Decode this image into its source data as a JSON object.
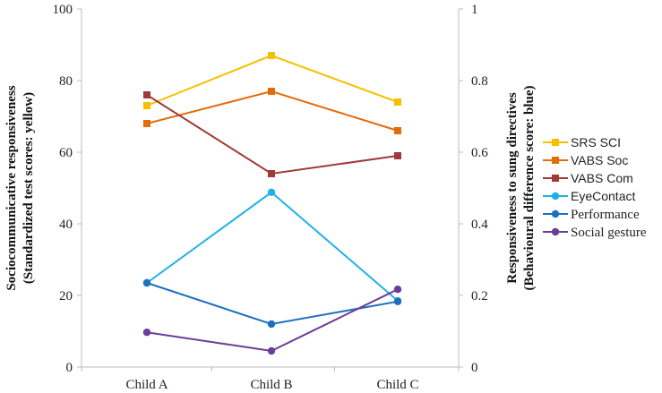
{
  "chart_data": {
    "type": "line",
    "categories": [
      "Child A",
      "Child B",
      "Child C"
    ],
    "left_axis": {
      "title_line1": "Sociocommunicative responsiveness",
      "title_line2": "(Standardized test scores: yellow)",
      "ylim": [
        0,
        100
      ],
      "ticks": [
        "0",
        "20",
        "40",
        "60",
        "80",
        "100"
      ]
    },
    "right_axis": {
      "title_line1": "Responsiveness to sung directives",
      "title_line2": "(Behavioural difference score: blue)",
      "ylim": [
        0,
        1
      ],
      "ticks": [
        "0",
        "0.2",
        "0.4",
        "0.6",
        "0.8",
        "1"
      ]
    },
    "grid": false,
    "legend_position": "right",
    "series": [
      {
        "name": "SRS SCI",
        "axis": "left",
        "marker": "square",
        "color": "#f5c000",
        "values": [
          73,
          87,
          74
        ]
      },
      {
        "name": "VABS Soc",
        "axis": "left",
        "marker": "square",
        "color": "#e36c0a",
        "values": [
          68,
          77,
          66
        ]
      },
      {
        "name": "VABS Com",
        "axis": "left",
        "marker": "square",
        "color": "#9e3b38",
        "values": [
          76,
          54,
          59
        ]
      },
      {
        "name": "EyeContact",
        "axis": "right",
        "marker": "circle",
        "color": "#1fb1e6",
        "values": [
          0.235,
          0.488,
          0.185
        ]
      },
      {
        "name": "Performance",
        "axis": "right",
        "marker": "circle",
        "color": "#1f6fbf",
        "values": [
          0.235,
          0.12,
          0.183
        ]
      },
      {
        "name": "Social gesture",
        "axis": "right",
        "marker": "circle",
        "color": "#6a3d9a",
        "values": [
          0.097,
          0.045,
          0.217
        ]
      }
    ]
  }
}
